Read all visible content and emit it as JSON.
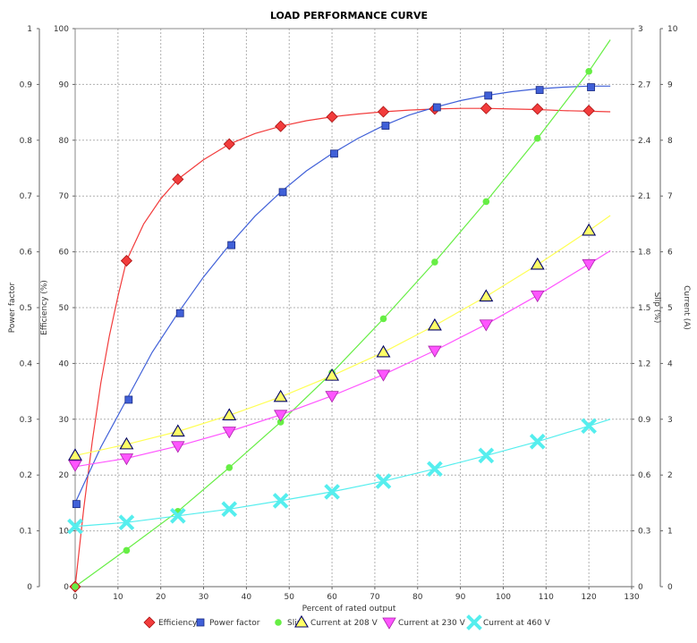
{
  "chart_data": {
    "type": "scatter",
    "title": "LOAD PERFORMANCE CURVE",
    "xlabel": "Percent of rated output",
    "xlim": [
      0,
      130
    ],
    "xticks": [
      0,
      10,
      20,
      30,
      40,
      50,
      60,
      70,
      80,
      90,
      100,
      110,
      120,
      130
    ],
    "grid": true,
    "legend_position": "bottom",
    "axes": [
      {
        "id": "pf",
        "label": "Power factor",
        "side": "left",
        "range": [
          0,
          1
        ],
        "ticks": [
          "0",
          "0.1",
          "0.2",
          "0.3",
          "0.4",
          "0.5",
          "0.6",
          "0.7",
          "0.8",
          "0.9",
          "1"
        ]
      },
      {
        "id": "eff",
        "label": "Efficiency (%)",
        "side": "left",
        "range": [
          0,
          100
        ],
        "ticks": [
          "0",
          "10",
          "20",
          "30",
          "40",
          "50",
          "60",
          "70",
          "80",
          "90",
          "100"
        ]
      },
      {
        "id": "slip",
        "label": "Slip (%)",
        "side": "right",
        "range": [
          0,
          3
        ],
        "ticks": [
          "0",
          "0.3",
          "0.6",
          "0.9",
          "1.2",
          "1.5",
          "1.8",
          "2.1",
          "2.4",
          "2.7",
          "3"
        ]
      },
      {
        "id": "cur",
        "label": "Current (A)",
        "side": "right",
        "range": [
          0,
          10
        ],
        "ticks": [
          "0",
          "1",
          "2",
          "3",
          "4",
          "5",
          "6",
          "7",
          "8",
          "9",
          "10"
        ]
      }
    ],
    "series": [
      {
        "name": "Efficiency",
        "axis": "eff",
        "color": "#f23c3c",
        "marker": "diamond",
        "x": [
          0,
          12,
          24,
          36,
          48,
          60,
          72,
          84,
          96,
          108,
          120
        ],
        "y": [
          0,
          58.4,
          73,
          79.3,
          82.5,
          84.2,
          85.1,
          85.6,
          85.7,
          85.6,
          85.3
        ],
        "curve": [
          [
            0,
            0
          ],
          [
            2,
            14
          ],
          [
            4,
            26
          ],
          [
            6,
            36.5
          ],
          [
            8,
            45
          ],
          [
            10,
            52
          ],
          [
            12,
            58.4
          ],
          [
            16,
            65
          ],
          [
            20,
            69.5
          ],
          [
            24,
            73
          ],
          [
            30,
            76.5
          ],
          [
            36,
            79.3
          ],
          [
            42,
            81.2
          ],
          [
            48,
            82.5
          ],
          [
            54,
            83.5
          ],
          [
            60,
            84.2
          ],
          [
            66,
            84.7
          ],
          [
            72,
            85.1
          ],
          [
            78,
            85.4
          ],
          [
            84,
            85.6
          ],
          [
            90,
            85.7
          ],
          [
            96,
            85.7
          ],
          [
            102,
            85.6
          ],
          [
            108,
            85.5
          ],
          [
            114,
            85.3
          ],
          [
            120,
            85.2
          ],
          [
            125,
            85.1
          ]
        ]
      },
      {
        "name": "Power factor",
        "axis": "pf",
        "color": "#4060d8",
        "marker": "square",
        "x": [
          0.3,
          12.5,
          24.5,
          36.5,
          48.5,
          60.5,
          72.5,
          84.5,
          96.5,
          108.5,
          120.5
        ],
        "y": [
          0.148,
          0.335,
          0.49,
          0.612,
          0.707,
          0.776,
          0.826,
          0.859,
          0.88,
          0.89,
          0.895
        ],
        "curve": [
          [
            0,
            0.15
          ],
          [
            6,
            0.25
          ],
          [
            12,
            0.335
          ],
          [
            18,
            0.42
          ],
          [
            24,
            0.49
          ],
          [
            30,
            0.555
          ],
          [
            36,
            0.612
          ],
          [
            42,
            0.664
          ],
          [
            48,
            0.707
          ],
          [
            54,
            0.745
          ],
          [
            60,
            0.776
          ],
          [
            66,
            0.803
          ],
          [
            72,
            0.826
          ],
          [
            78,
            0.845
          ],
          [
            84,
            0.859
          ],
          [
            90,
            0.871
          ],
          [
            96,
            0.88
          ],
          [
            102,
            0.887
          ],
          [
            108,
            0.892
          ],
          [
            114,
            0.895
          ],
          [
            120,
            0.897
          ],
          [
            125,
            0.897
          ]
        ]
      },
      {
        "name": "Slip",
        "axis": "slip",
        "color": "#66ee44",
        "marker": "circle",
        "x": [
          0,
          12,
          24,
          36,
          48,
          60,
          72,
          84,
          96,
          108,
          120
        ],
        "y": [
          0,
          0.195,
          0.405,
          0.64,
          0.885,
          1.15,
          1.44,
          1.745,
          2.07,
          2.41,
          2.77
        ],
        "curve": [
          [
            0,
            0
          ],
          [
            12,
            0.2
          ],
          [
            24,
            0.405
          ],
          [
            36,
            0.64
          ],
          [
            48,
            0.885
          ],
          [
            60,
            1.15
          ],
          [
            72,
            1.44
          ],
          [
            84,
            1.745
          ],
          [
            96,
            2.07
          ],
          [
            108,
            2.41
          ],
          [
            120,
            2.77
          ],
          [
            125,
            2.94
          ]
        ]
      },
      {
        "name": "Current at 208 V",
        "axis": "cur",
        "color": "#ffff66",
        "stroke": "#000066",
        "marker": "triangle-up",
        "x": [
          0,
          12,
          24,
          36,
          48,
          60,
          72,
          84,
          96,
          108,
          120
        ],
        "y": [
          2.35,
          2.55,
          2.78,
          3.07,
          3.4,
          3.78,
          4.2,
          4.68,
          5.2,
          5.77,
          6.38
        ],
        "curve": [
          [
            0,
            2.35
          ],
          [
            12,
            2.55
          ],
          [
            24,
            2.78
          ],
          [
            36,
            3.07
          ],
          [
            48,
            3.4
          ],
          [
            60,
            3.78
          ],
          [
            72,
            4.2
          ],
          [
            84,
            4.68
          ],
          [
            96,
            5.2
          ],
          [
            108,
            5.77
          ],
          [
            120,
            6.38
          ],
          [
            125,
            6.65
          ]
        ]
      },
      {
        "name": "Current at 230 V",
        "axis": "cur",
        "color": "#ff55ff",
        "marker": "triangle-down",
        "x": [
          0,
          12,
          24,
          36,
          48,
          60,
          72,
          84,
          96,
          108,
          120
        ],
        "y": [
          2.18,
          2.3,
          2.52,
          2.78,
          3.08,
          3.42,
          3.8,
          4.23,
          4.7,
          5.22,
          5.78
        ],
        "curve": [
          [
            0,
            2.15
          ],
          [
            12,
            2.3
          ],
          [
            24,
            2.52
          ],
          [
            36,
            2.78
          ],
          [
            48,
            3.08
          ],
          [
            60,
            3.42
          ],
          [
            72,
            3.8
          ],
          [
            84,
            4.23
          ],
          [
            96,
            4.7
          ],
          [
            108,
            5.22
          ],
          [
            120,
            5.78
          ],
          [
            125,
            6.02
          ]
        ]
      },
      {
        "name": "Current at 460 V",
        "axis": "cur",
        "color": "#55eeee",
        "marker": "x",
        "x": [
          0,
          12,
          24,
          36,
          48,
          60,
          72,
          84,
          96,
          108,
          120
        ],
        "y": [
          1.08,
          1.15,
          1.27,
          1.39,
          1.54,
          1.7,
          1.89,
          2.11,
          2.35,
          2.6,
          2.88
        ],
        "curve": [
          [
            0,
            1.08
          ],
          [
            12,
            1.15
          ],
          [
            24,
            1.27
          ],
          [
            36,
            1.39
          ],
          [
            48,
            1.54
          ],
          [
            60,
            1.7
          ],
          [
            72,
            1.89
          ],
          [
            84,
            2.11
          ],
          [
            96,
            2.35
          ],
          [
            108,
            2.6
          ],
          [
            120,
            2.88
          ],
          [
            125,
            3.0
          ]
        ]
      }
    ]
  }
}
